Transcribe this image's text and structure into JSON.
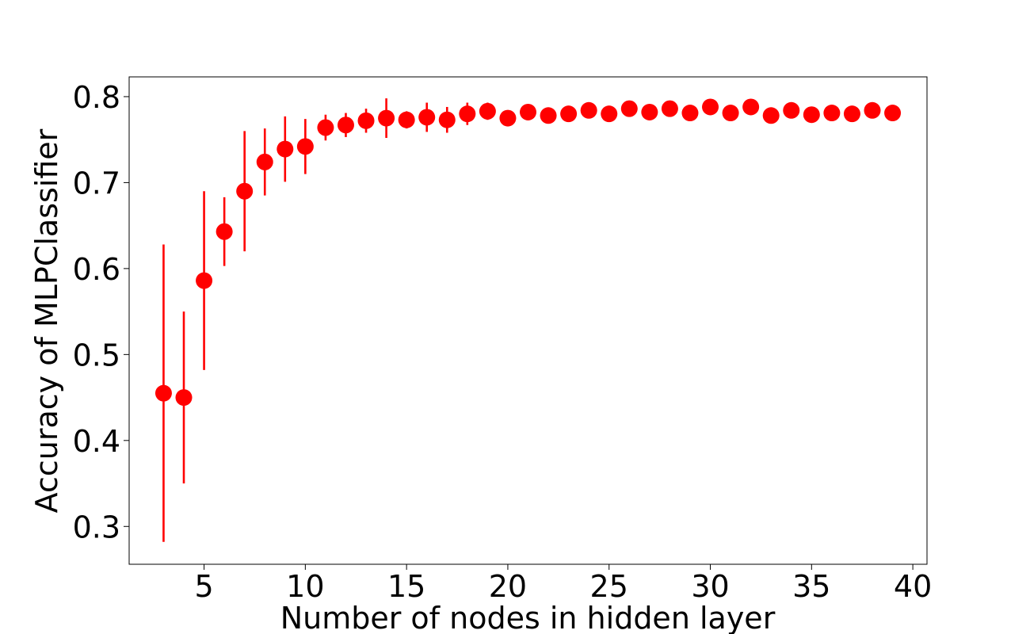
{
  "chart_data": {
    "type": "scatter",
    "title": "",
    "xlabel": "Number of nodes in hidden layer",
    "ylabel": "Accuracy of MLPClassifier",
    "xlim": [
      1.3,
      40.7
    ],
    "ylim": [
      0.256,
      0.823
    ],
    "xticks": [
      5,
      10,
      15,
      20,
      25,
      30,
      35,
      40
    ],
    "yticks": [
      0.3,
      0.4,
      0.5,
      0.6,
      0.7,
      0.8
    ],
    "xtick_labels": [
      "5",
      "10",
      "15",
      "20",
      "25",
      "30",
      "35",
      "40"
    ],
    "ytick_labels": [
      "0.3",
      "0.4",
      "0.5",
      "0.6",
      "0.7",
      "0.8"
    ],
    "grid": false,
    "error_bars": true,
    "series": [
      {
        "color": "#ff0000",
        "marker": "circle",
        "x": [
          3,
          4,
          5,
          6,
          7,
          8,
          9,
          10,
          11,
          12,
          13,
          14,
          15,
          16,
          17,
          18,
          19,
          20,
          21,
          22,
          23,
          24,
          25,
          26,
          27,
          28,
          29,
          30,
          31,
          32,
          33,
          34,
          35,
          36,
          37,
          38,
          39
        ],
        "y": [
          0.455,
          0.45,
          0.586,
          0.643,
          0.69,
          0.724,
          0.739,
          0.742,
          0.764,
          0.767,
          0.772,
          0.775,
          0.773,
          0.776,
          0.773,
          0.78,
          0.783,
          0.775,
          0.782,
          0.778,
          0.78,
          0.784,
          0.78,
          0.786,
          0.782,
          0.786,
          0.781,
          0.788,
          0.781,
          0.788,
          0.778,
          0.784,
          0.779,
          0.781,
          0.78,
          0.784,
          0.781
        ],
        "yerr": [
          0.173,
          0.1,
          0.104,
          0.04,
          0.07,
          0.039,
          0.038,
          0.032,
          0.015,
          0.014,
          0.014,
          0.023,
          0.01,
          0.017,
          0.015,
          0.013,
          0.01,
          0.008,
          0.007,
          0.006,
          0.006,
          0.007,
          0.005,
          0.005,
          0.005,
          0.005,
          0.005,
          0.005,
          0.005,
          0.005,
          0.005,
          0.005,
          0.005,
          0.005,
          0.005,
          0.005,
          0.005
        ]
      }
    ]
  }
}
